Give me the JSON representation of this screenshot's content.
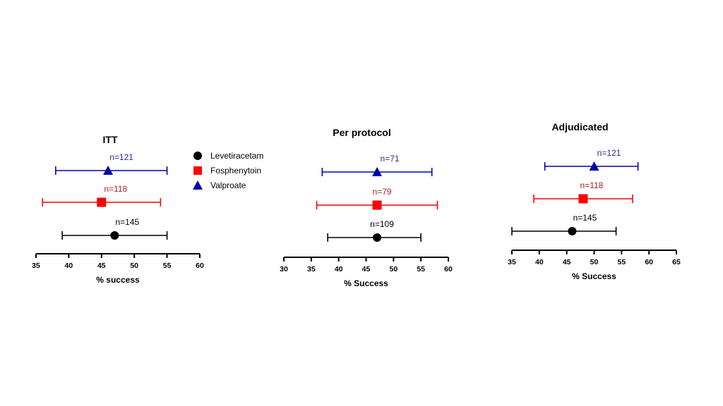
{
  "legend": {
    "items": [
      {
        "label": "Levetiracetam",
        "color": "#000000",
        "marker": "circle"
      },
      {
        "label": "Fosphenytoin",
        "color": "#ff0000",
        "marker": "square"
      },
      {
        "label": "Valproate",
        "color": "#0000aa",
        "marker": "triangle"
      }
    ]
  },
  "chart_data": [
    {
      "type": "scatter",
      "title": "ITT",
      "xlabel": "% success",
      "xlim": [
        35,
        60
      ],
      "ticks": [
        "35",
        "40",
        "45",
        "50",
        "55",
        "60"
      ],
      "series": [
        {
          "name": "Valproate",
          "n_label": "n=121",
          "estimate": 46,
          "ci": [
            38,
            55
          ],
          "color": "#0000aa",
          "label_color": "#2b2b8a"
        },
        {
          "name": "Fosphenytoin",
          "n_label": "n=118",
          "estimate": 45,
          "ci": [
            36,
            54
          ],
          "color": "#ff0000",
          "label_color": "#b22222"
        },
        {
          "name": "Levetiracetam",
          "n_label": "n=145",
          "estimate": 47,
          "ci": [
            39,
            55
          ],
          "color": "#000000",
          "label_color": "#000000"
        }
      ]
    },
    {
      "type": "scatter",
      "title": "Per protocol",
      "xlabel": "% Success",
      "xlim": [
        30,
        60
      ],
      "ticks": [
        "30",
        "35",
        "40",
        "45",
        "50",
        "55",
        "60"
      ],
      "series": [
        {
          "name": "Valproate",
          "n_label": "n=71",
          "estimate": 47,
          "ci": [
            37,
            57
          ],
          "color": "#0000aa",
          "label_color": "#2b2b8a"
        },
        {
          "name": "Fosphenytoin",
          "n_label": "n=79",
          "estimate": 47,
          "ci": [
            36,
            58
          ],
          "color": "#ff0000",
          "label_color": "#b22222"
        },
        {
          "name": "Levetiracetam",
          "n_label": "n=109",
          "estimate": 47,
          "ci": [
            38,
            55
          ],
          "color": "#000000",
          "label_color": "#000000"
        }
      ]
    },
    {
      "type": "scatter",
      "title": "Adjudicated",
      "xlabel": "% Success",
      "xlim": [
        35,
        65
      ],
      "ticks": [
        "35",
        "40",
        "45",
        "50",
        "55",
        "60",
        "65"
      ],
      "series": [
        {
          "name": "Valproate",
          "n_label": "n=121",
          "estimate": 50,
          "ci": [
            41,
            58
          ],
          "color": "#0000aa",
          "label_color": "#2b2b8a"
        },
        {
          "name": "Fosphenytoin",
          "n_label": "n=118",
          "estimate": 48,
          "ci": [
            39,
            57
          ],
          "color": "#ff0000",
          "label_color": "#b22222"
        },
        {
          "name": "Levetiracetam",
          "n_label": "n=145",
          "estimate": 46,
          "ci": [
            35,
            54
          ],
          "color": "#000000",
          "label_color": "#000000"
        }
      ]
    }
  ]
}
